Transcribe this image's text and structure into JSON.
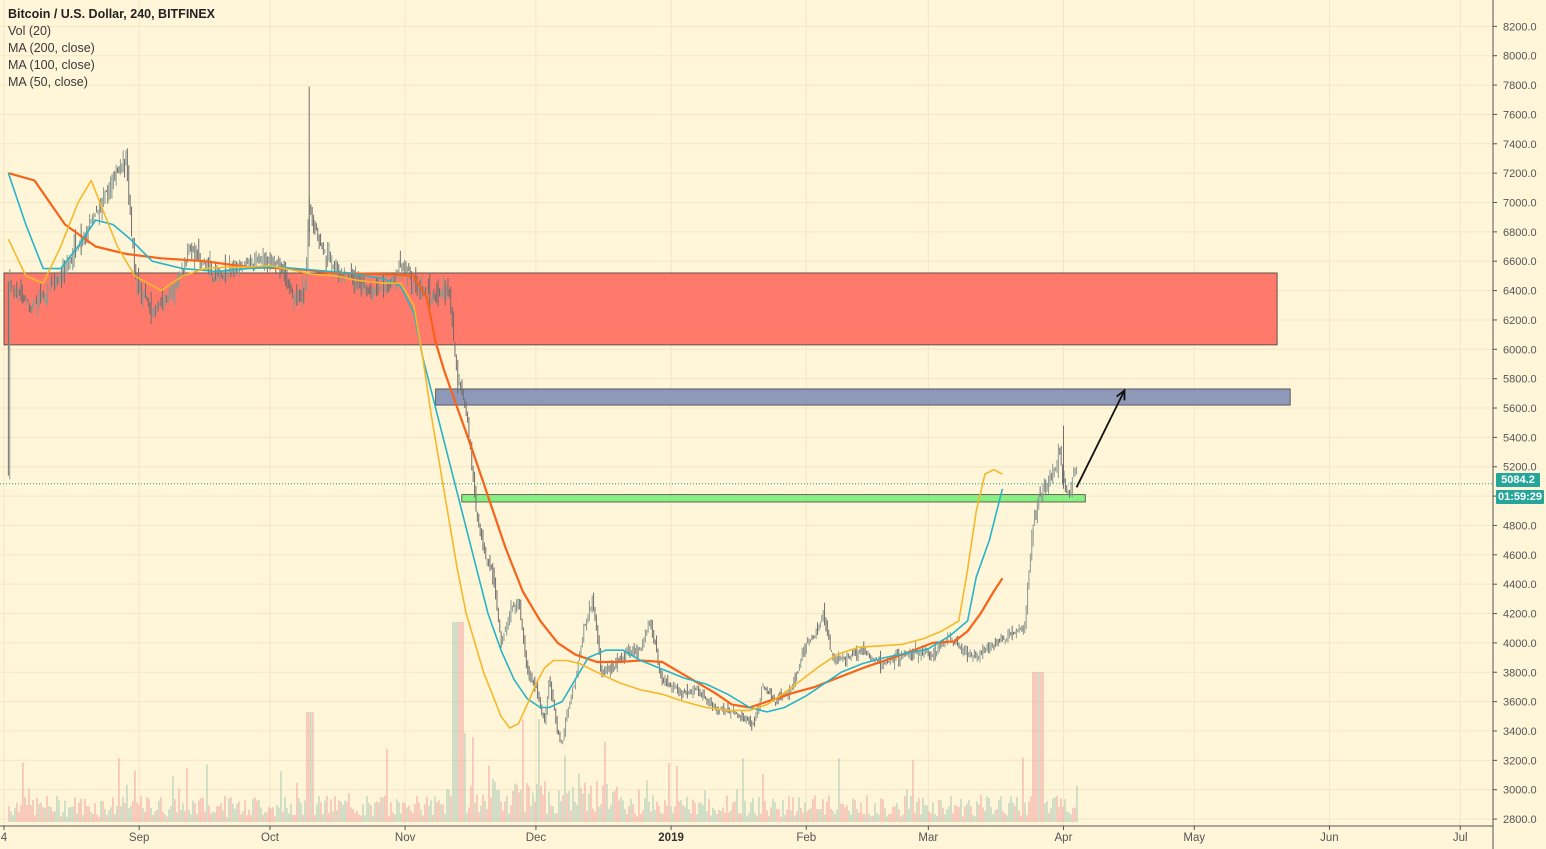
{
  "legend": {
    "title": "Bitcoin / U.S. Dollar, 240, BITFINEX",
    "vol": "Vol (20)",
    "ma200": "MA (200, close)",
    "ma100": "MA (100, close)",
    "ma50": "MA (50, close)"
  },
  "price_tag": "5084.2",
  "time_tag": "01:59:29",
  "colors": {
    "background": "#fff5d9",
    "up_candle": "#8a9a92",
    "down_candle": "#6e6e6e",
    "ma200": "#f7631a",
    "ma100": "#26b4c8",
    "ma50": "#f5b82a",
    "resistance_zone": "#ff7466",
    "target_zone": "#8592b8",
    "support_zone": "#7ef07a",
    "price_tag": "#26a69a",
    "vol_up": "#a8c9b4",
    "vol_down": "#f2a3a0"
  },
  "chart_data": {
    "type": "line",
    "title": "Bitcoin / U.S. Dollar, 240, BITFINEX",
    "xlabel": "",
    "ylabel": "",
    "ylim": [
      2800,
      8300
    ],
    "y_ticks": [
      "2800.0",
      "3000.0",
      "3200.0",
      "3400.0",
      "3600.0",
      "3800.0",
      "4000.0",
      "4200.0",
      "4400.0",
      "4600.0",
      "4800.0",
      "5000.0",
      "5200.0",
      "5400.0",
      "5600.0",
      "5800.0",
      "6000.0",
      "6200.0",
      "6400.0",
      "6600.0",
      "6800.0",
      "7000.0",
      "7200.0",
      "7400.0",
      "7600.0",
      "7800.0",
      "8000.0",
      "8200.0"
    ],
    "x_ticks": [
      {
        "label": "4",
        "day": -1
      },
      {
        "label": "Sep",
        "day": 30
      },
      {
        "label": "Oct",
        "day": 60
      },
      {
        "label": "Nov",
        "day": 91
      },
      {
        "label": "Dec",
        "day": 121
      },
      {
        "label": "2019",
        "day": 152,
        "bold": true
      },
      {
        "label": "Feb",
        "day": 183
      },
      {
        "label": "Mar",
        "day": 211
      },
      {
        "label": "Apr",
        "day": 242
      },
      {
        "label": "May",
        "day": 272
      },
      {
        "label": "Jun",
        "day": 303
      },
      {
        "label": "Jul",
        "day": 333
      }
    ],
    "price_path": [
      [
        0,
        6450
      ],
      [
        5,
        6300
      ],
      [
        12,
        6500
      ],
      [
        18,
        6800
      ],
      [
        24,
        7150
      ],
      [
        27,
        7300
      ],
      [
        29,
        6500
      ],
      [
        33,
        6250
      ],
      [
        38,
        6400
      ],
      [
        42,
        6700
      ],
      [
        47,
        6500
      ],
      [
        52,
        6550
      ],
      [
        57,
        6600
      ],
      [
        61,
        6600
      ],
      [
        66,
        6350
      ],
      [
        68,
        6400
      ],
      [
        69,
        7000
      ],
      [
        71,
        6750
      ],
      [
        75,
        6550
      ],
      [
        80,
        6450
      ],
      [
        84,
        6400
      ],
      [
        88,
        6450
      ],
      [
        90,
        6600
      ],
      [
        93,
        6450
      ],
      [
        97,
        6350
      ],
      [
        101,
        6400
      ],
      [
        103,
        5800
      ],
      [
        105,
        5600
      ],
      [
        107,
        5000
      ],
      [
        109,
        4600
      ],
      [
        111,
        4500
      ],
      [
        113,
        4000
      ],
      [
        115,
        4200
      ],
      [
        117,
        4300
      ],
      [
        119,
        3800
      ],
      [
        121,
        3700
      ],
      [
        123,
        3450
      ],
      [
        124,
        3750
      ],
      [
        126,
        3400
      ],
      [
        127,
        3300
      ],
      [
        128,
        3500
      ],
      [
        130,
        3750
      ],
      [
        132,
        4100
      ],
      [
        134,
        4300
      ],
      [
        136,
        3800
      ],
      [
        139,
        3850
      ],
      [
        142,
        3950
      ],
      [
        145,
        3950
      ],
      [
        147,
        4150
      ],
      [
        150,
        3750
      ],
      [
        155,
        3650
      ],
      [
        158,
        3700
      ],
      [
        162,
        3550
      ],
      [
        165,
        3550
      ],
      [
        168,
        3500
      ],
      [
        171,
        3450
      ],
      [
        173,
        3700
      ],
      [
        176,
        3600
      ],
      [
        180,
        3700
      ],
      [
        183,
        4000
      ],
      [
        185,
        4050
      ],
      [
        187,
        4200
      ],
      [
        189,
        3900
      ],
      [
        192,
        3900
      ],
      [
        196,
        3950
      ],
      [
        200,
        3850
      ],
      [
        204,
        3900
      ],
      [
        208,
        3950
      ],
      [
        211,
        3900
      ],
      [
        213,
        3950
      ],
      [
        216,
        4050
      ],
      [
        219,
        3950
      ],
      [
        222,
        3900
      ],
      [
        226,
        4000
      ],
      [
        230,
        4050
      ],
      [
        233,
        4100
      ],
      [
        235,
        4800
      ],
      [
        237,
        5050
      ],
      [
        239,
        5100
      ],
      [
        241,
        5300
      ],
      [
        243,
        5000
      ],
      [
        245,
        5200
      ]
    ],
    "series": [
      {
        "name": "MA (200, close)",
        "color": "#f7631a",
        "points": [
          [
            0,
            7200
          ],
          [
            6,
            7150
          ],
          [
            13,
            6850
          ],
          [
            20,
            6700
          ],
          [
            27,
            6650
          ],
          [
            35,
            6620
          ],
          [
            45,
            6600
          ],
          [
            55,
            6560
          ],
          [
            65,
            6550
          ],
          [
            75,
            6520
          ],
          [
            88,
            6510
          ],
          [
            93,
            6500
          ],
          [
            96,
            6350
          ],
          [
            98,
            6050
          ],
          [
            100,
            5850
          ],
          [
            103,
            5600
          ],
          [
            106,
            5350
          ],
          [
            110,
            5000
          ],
          [
            114,
            4650
          ],
          [
            118,
            4350
          ],
          [
            122,
            4150
          ],
          [
            126,
            4000
          ],
          [
            130,
            3920
          ],
          [
            135,
            3870
          ],
          [
            140,
            3870
          ],
          [
            145,
            3880
          ],
          [
            150,
            3870
          ],
          [
            154,
            3800
          ],
          [
            158,
            3730
          ],
          [
            162,
            3660
          ],
          [
            166,
            3580
          ],
          [
            170,
            3560
          ],
          [
            175,
            3610
          ],
          [
            180,
            3660
          ],
          [
            185,
            3700
          ],
          [
            190,
            3760
          ],
          [
            197,
            3840
          ],
          [
            205,
            3920
          ],
          [
            212,
            4000
          ],
          [
            217,
            4010
          ],
          [
            220,
            4080
          ],
          [
            223,
            4200
          ],
          [
            226,
            4350
          ],
          [
            228,
            4440
          ]
        ]
      },
      {
        "name": "MA (100, close)",
        "color": "#26b4c8",
        "points": [
          [
            0,
            7200
          ],
          [
            4,
            6850
          ],
          [
            8,
            6550
          ],
          [
            12,
            6550
          ],
          [
            16,
            6700
          ],
          [
            20,
            6880
          ],
          [
            24,
            6850
          ],
          [
            28,
            6750
          ],
          [
            33,
            6600
          ],
          [
            40,
            6550
          ],
          [
            48,
            6530
          ],
          [
            55,
            6550
          ],
          [
            62,
            6560
          ],
          [
            70,
            6540
          ],
          [
            78,
            6520
          ],
          [
            86,
            6480
          ],
          [
            90,
            6430
          ],
          [
            93,
            6250
          ],
          [
            95,
            5950
          ],
          [
            98,
            5600
          ],
          [
            101,
            5250
          ],
          [
            104,
            4900
          ],
          [
            107,
            4550
          ],
          [
            110,
            4200
          ],
          [
            113,
            3950
          ],
          [
            116,
            3750
          ],
          [
            119,
            3620
          ],
          [
            122,
            3560
          ],
          [
            124,
            3560
          ],
          [
            127,
            3600
          ],
          [
            130,
            3750
          ],
          [
            133,
            3900
          ],
          [
            137,
            3950
          ],
          [
            141,
            3950
          ],
          [
            145,
            3880
          ],
          [
            150,
            3820
          ],
          [
            155,
            3760
          ],
          [
            160,
            3720
          ],
          [
            165,
            3650
          ],
          [
            170,
            3560
          ],
          [
            174,
            3530
          ],
          [
            178,
            3560
          ],
          [
            183,
            3640
          ],
          [
            187,
            3720
          ],
          [
            191,
            3800
          ],
          [
            196,
            3860
          ],
          [
            201,
            3900
          ],
          [
            206,
            3930
          ],
          [
            211,
            3960
          ],
          [
            216,
            4050
          ],
          [
            220,
            4150
          ],
          [
            222,
            4450
          ],
          [
            225,
            4700
          ],
          [
            228,
            5050
          ]
        ]
      },
      {
        "name": "MA (50, close)",
        "color": "#f5b82a",
        "points": [
          [
            0,
            6750
          ],
          [
            4,
            6500
          ],
          [
            8,
            6450
          ],
          [
            12,
            6700
          ],
          [
            16,
            7000
          ],
          [
            19,
            7150
          ],
          [
            21,
            7000
          ],
          [
            25,
            6700
          ],
          [
            29,
            6500
          ],
          [
            35,
            6400
          ],
          [
            40,
            6500
          ],
          [
            45,
            6550
          ],
          [
            50,
            6560
          ],
          [
            55,
            6560
          ],
          [
            60,
            6570
          ],
          [
            65,
            6540
          ],
          [
            70,
            6510
          ],
          [
            75,
            6500
          ],
          [
            80,
            6470
          ],
          [
            86,
            6450
          ],
          [
            90,
            6450
          ],
          [
            93,
            6300
          ],
          [
            95,
            5950
          ],
          [
            97,
            5550
          ],
          [
            99,
            5200
          ],
          [
            101,
            4850
          ],
          [
            103,
            4500
          ],
          [
            105,
            4200
          ],
          [
            107,
            4000
          ],
          [
            109,
            3800
          ],
          [
            111,
            3650
          ],
          [
            113,
            3500
          ],
          [
            115,
            3420
          ],
          [
            117,
            3450
          ],
          [
            119,
            3580
          ],
          [
            121,
            3720
          ],
          [
            123,
            3830
          ],
          [
            125,
            3880
          ],
          [
            128,
            3880
          ],
          [
            131,
            3860
          ],
          [
            135,
            3800
          ],
          [
            140,
            3730
          ],
          [
            145,
            3680
          ],
          [
            150,
            3650
          ],
          [
            155,
            3600
          ],
          [
            160,
            3560
          ],
          [
            165,
            3540
          ],
          [
            170,
            3540
          ],
          [
            174,
            3580
          ],
          [
            178,
            3660
          ],
          [
            182,
            3750
          ],
          [
            186,
            3840
          ],
          [
            190,
            3920
          ],
          [
            195,
            3970
          ],
          [
            200,
            3980
          ],
          [
            205,
            3990
          ],
          [
            210,
            4030
          ],
          [
            214,
            4080
          ],
          [
            218,
            4150
          ],
          [
            220,
            4500
          ],
          [
            222,
            4900
          ],
          [
            224,
            5150
          ],
          [
            226,
            5180
          ],
          [
            228,
            5150
          ]
        ]
      }
    ],
    "zones": [
      {
        "name": "resistance",
        "x0": -1,
        "x1": 291,
        "y0": 6030,
        "y1": 6520,
        "color": "#ff7466"
      },
      {
        "name": "target",
        "x0": 98,
        "x1": 294,
        "y0": 5620,
        "y1": 5730,
        "color": "#8592b8"
      },
      {
        "name": "support",
        "x0": 104,
        "x1": 247,
        "y0": 4960,
        "y1": 5010,
        "color": "#7ef07a"
      }
    ],
    "arrow": {
      "from": [
        245,
        5060
      ],
      "to": [
        256,
        5720
      ]
    },
    "last_price": 5084.2
  }
}
